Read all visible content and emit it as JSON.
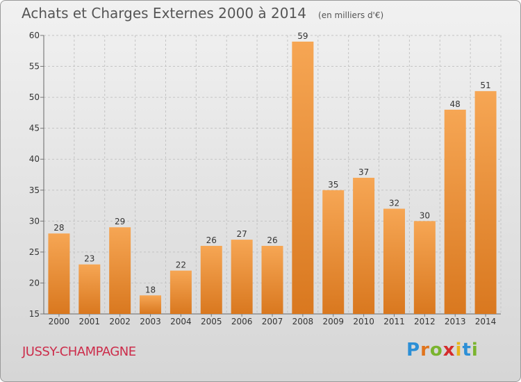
{
  "header": {
    "title": "Achats et Charges Externes 2000 à 2014",
    "unit": "(en milliers d'€)"
  },
  "footer": {
    "location": "JUSSY-CHAMPAGNE",
    "logo_text": "Proxiti"
  },
  "colors": {
    "bar_light": "#f6a654",
    "bar_dark": "#d9781f",
    "location_text": "#cc2c4a"
  },
  "chart_data": {
    "type": "bar",
    "title": "Achats et Charges Externes 2000 à 2014",
    "subtitle": "(en milliers d'€)",
    "xlabel": "",
    "ylabel": "",
    "categories": [
      "2000",
      "2001",
      "2002",
      "2003",
      "2004",
      "2005",
      "2006",
      "2007",
      "2008",
      "2009",
      "2010",
      "2011",
      "2012",
      "2013",
      "2014"
    ],
    "values": [
      28,
      23,
      29,
      18,
      22,
      26,
      27,
      26,
      59,
      35,
      37,
      32,
      30,
      48,
      51
    ],
    "ylim": [
      15,
      60
    ],
    "yticks": [
      15,
      20,
      25,
      30,
      35,
      40,
      45,
      50,
      55,
      60
    ],
    "grid": "horizontal-dashed",
    "legend": "none"
  }
}
